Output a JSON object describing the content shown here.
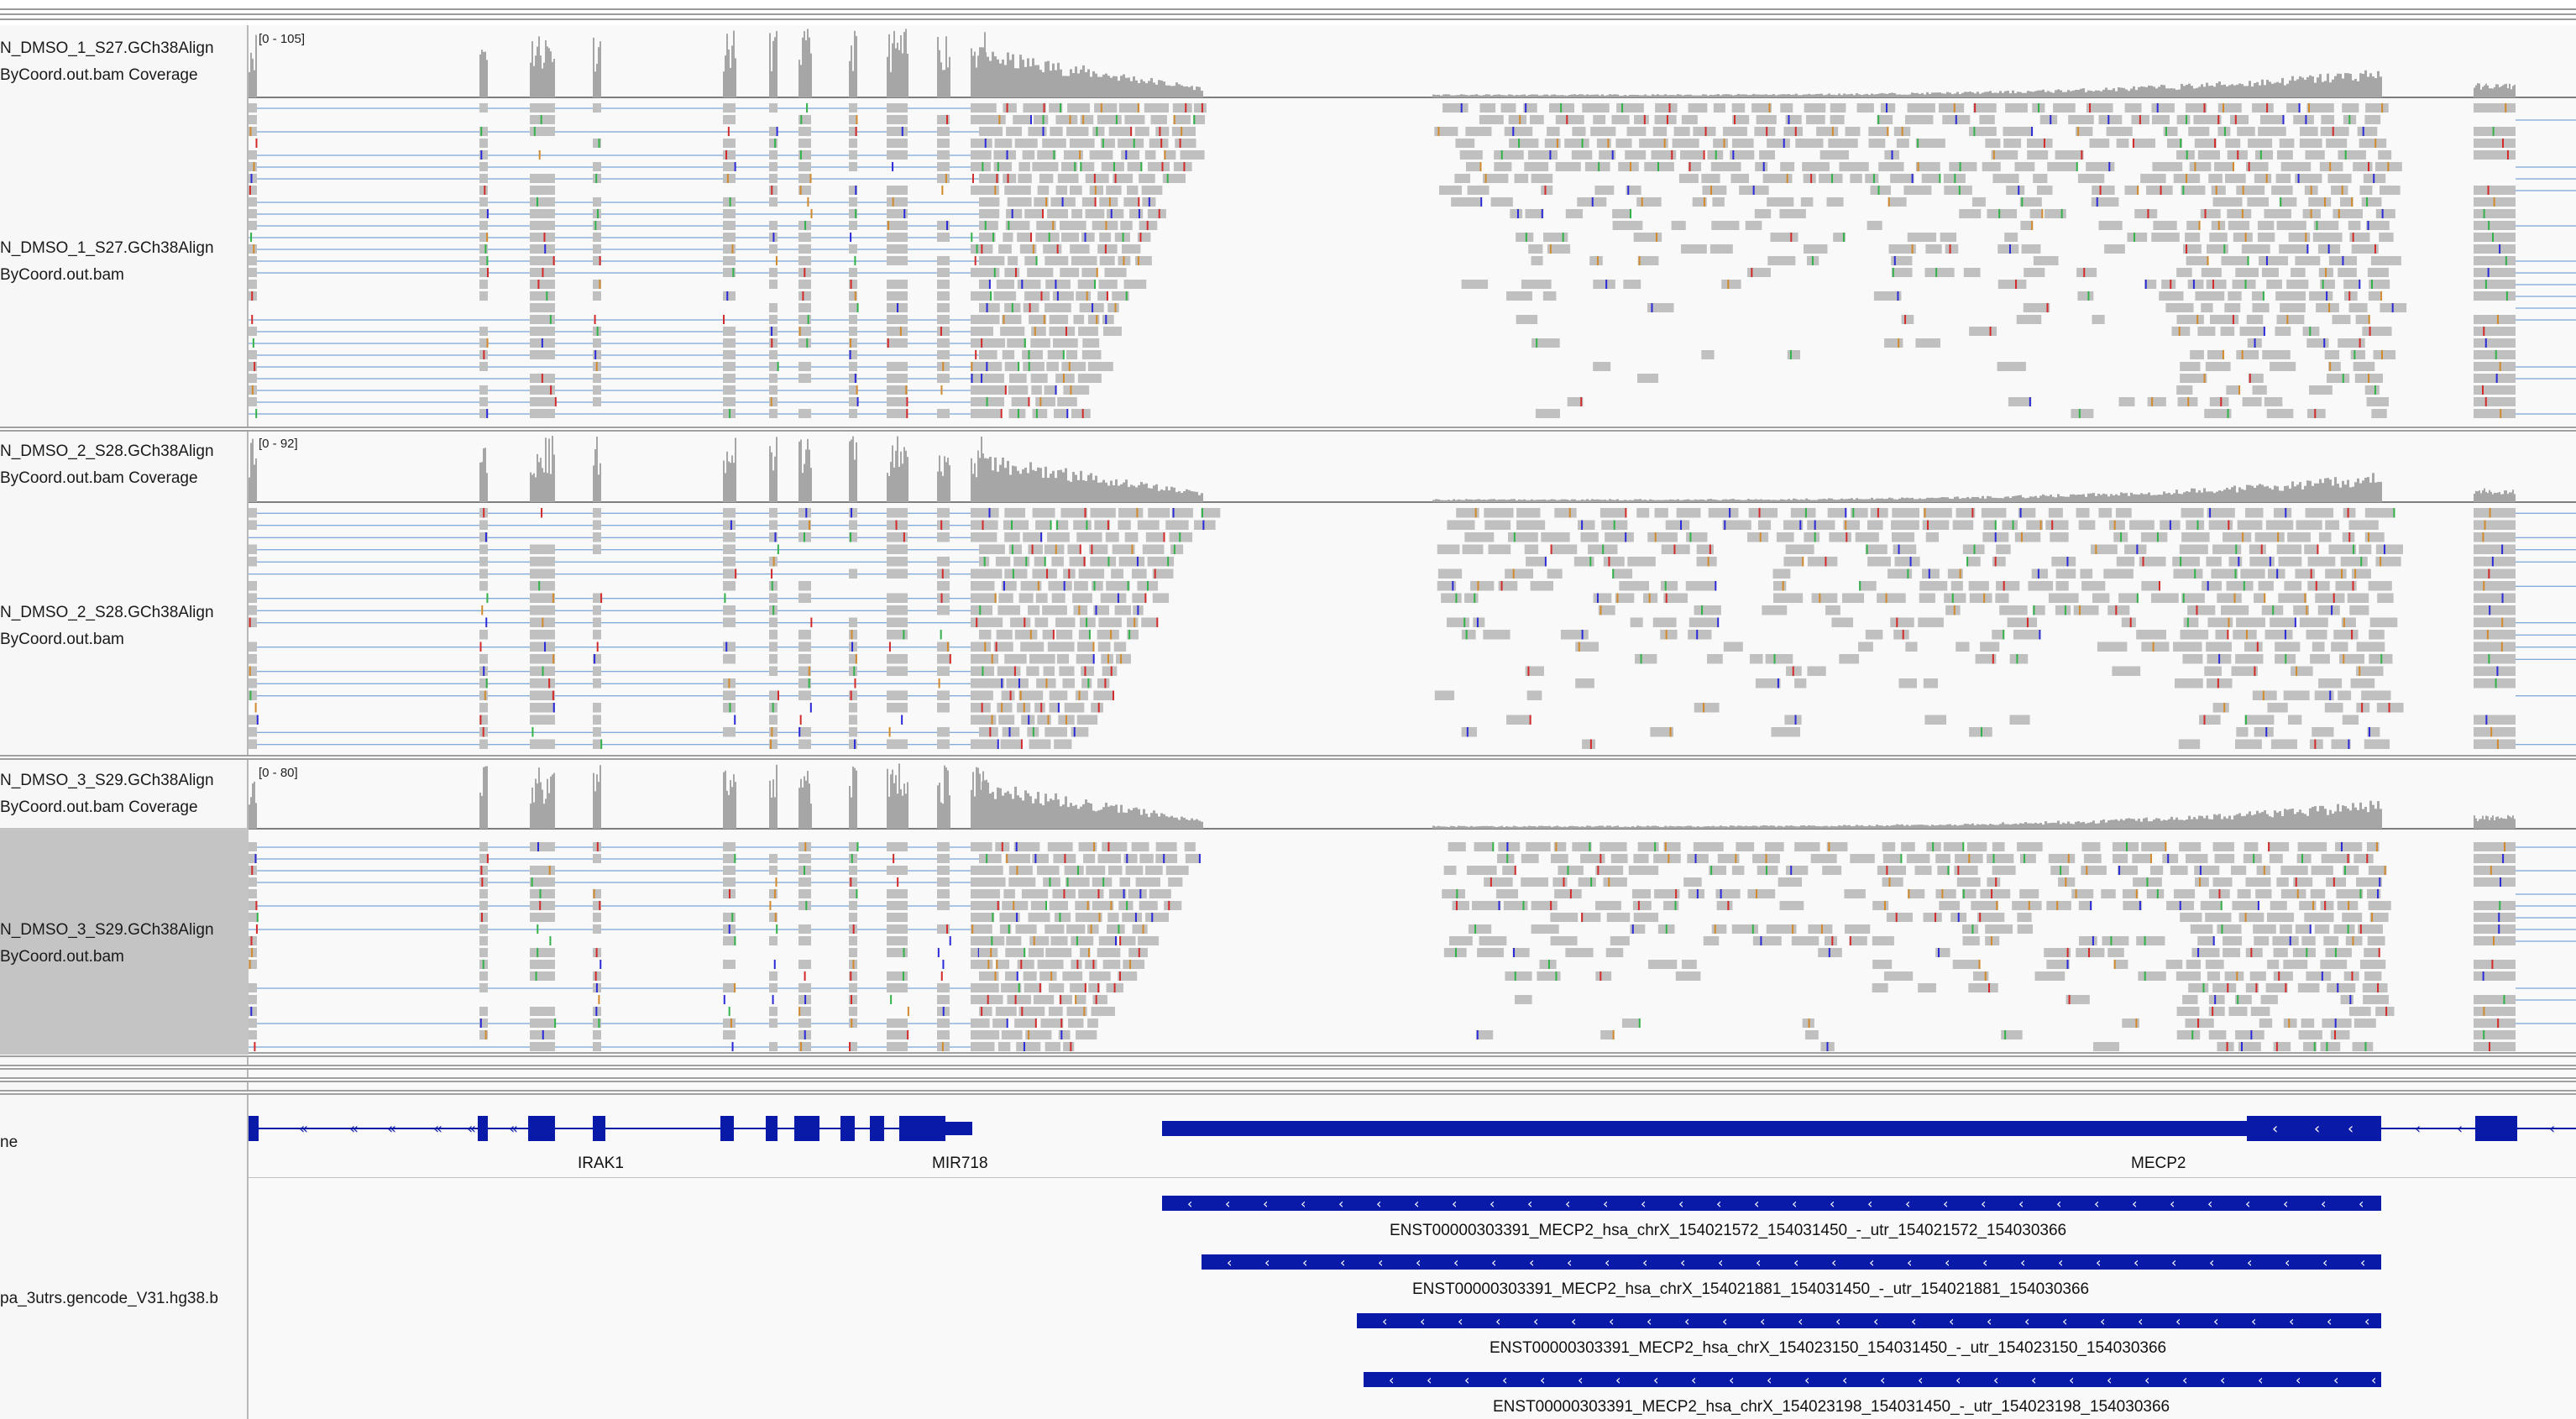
{
  "tracks": [
    {
      "coverage_label": "N_DMSO_1_S27.GCh38Align\nByCoord.out.bam Coverage",
      "coverage_line1": "N_DMSO_1_S27.GCh38Align",
      "coverage_line2": "ByCoord.out.bam Coverage",
      "alignment_line1": "N_DMSO_1_S27.GCh38Align",
      "alignment_line2": "ByCoord.out.bam",
      "data_range": "[0 - 105]"
    },
    {
      "coverage_line1": "N_DMSO_2_S28.GCh38Align",
      "coverage_line2": "ByCoord.out.bam Coverage",
      "alignment_line1": "N_DMSO_2_S28.GCh38Align",
      "alignment_line2": "ByCoord.out.bam",
      "data_range": "[0 - 92]"
    },
    {
      "coverage_line1": "N_DMSO_3_S29.GCh38Align",
      "coverage_line2": "ByCoord.out.bam Coverage",
      "alignment_line1": "N_DMSO_3_S29.GCh38Align",
      "alignment_line2": "ByCoord.out.bam",
      "data_range": "[0 - 80]"
    }
  ],
  "gene_track": {
    "label": "ne",
    "genes": [
      "IRAK1",
      "MIR718",
      "MECP2"
    ]
  },
  "utr_track": {
    "label": "pa_3utrs.gencode_V31.hg38.b",
    "transcripts": [
      "ENST00000303391_MECP2_hsa_chrX_154021572_154031450_-_utr_154021572_154030366",
      "ENST00000303391_MECP2_hsa_chrX_154021881_154031450_-_utr_154021881_154030366",
      "ENST00000303391_MECP2_hsa_chrX_154023150_154031450_-_utr_154023150_154030366",
      "ENST00000303391_MECP2_hsa_chrX_154023198_154031450_-_utr_154023198_154030366"
    ]
  },
  "colors": {
    "coverage": "#a6a6a6",
    "read": "#c0c0c0",
    "feature": "#0a1aa8",
    "mismatch_a": "#33b24a",
    "mismatch_c": "#2a2ad9",
    "mismatch_g": "#d28a2e",
    "mismatch_t": "#d32a2a",
    "junction_line": "#5b8fd0"
  }
}
